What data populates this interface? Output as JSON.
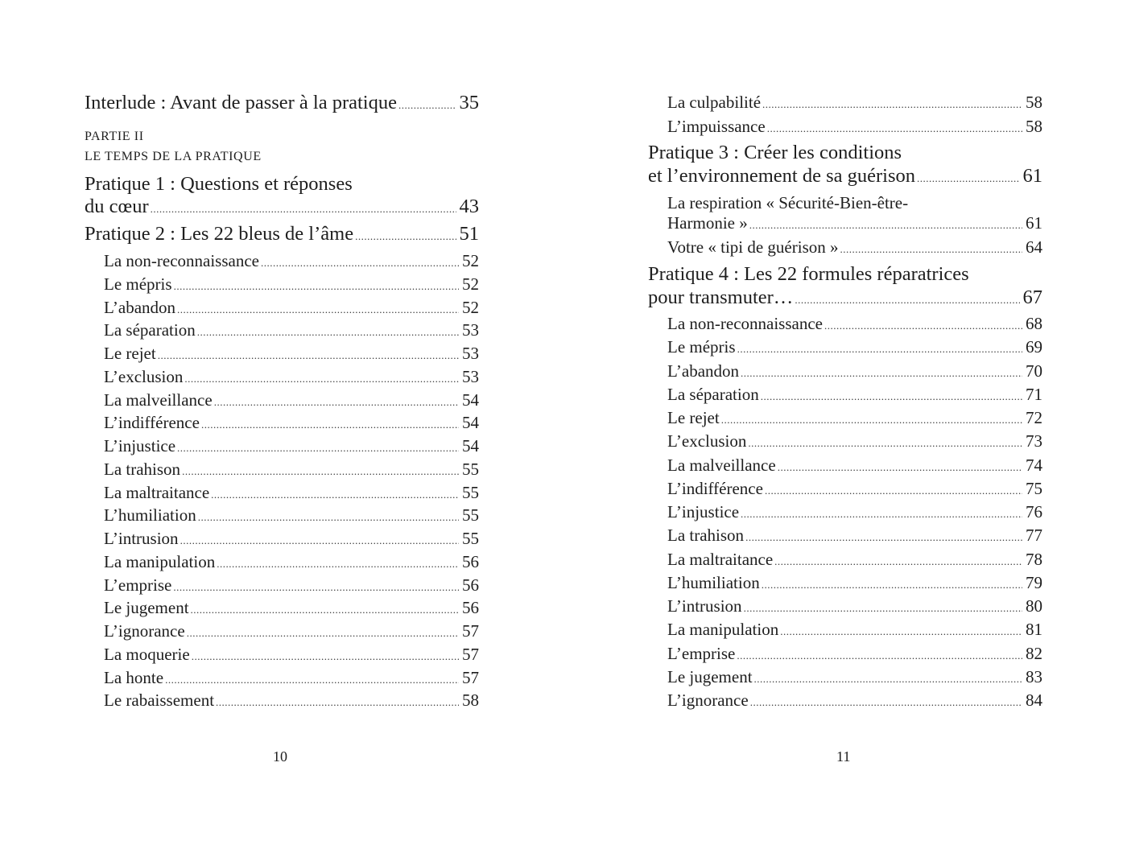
{
  "left_page": {
    "folio": "10",
    "entries": [
      {
        "type": "main",
        "lines": [
          "Interlude : Avant de passer à la pratique"
        ],
        "page": "35"
      },
      {
        "type": "caps",
        "lines": [
          "PARTIE II"
        ]
      },
      {
        "type": "caps",
        "lines": [
          "LE TEMPS DE LA PRATIQUE"
        ]
      },
      {
        "type": "main",
        "lines": [
          "Pratique 1 : Questions et réponses",
          "du cœur"
        ],
        "page": "43"
      },
      {
        "type": "main",
        "lines": [
          "Pratique 2 : Les 22 bleus de l’âme"
        ],
        "page": "51"
      },
      {
        "type": "sub",
        "lines": [
          "La non-reconnaissance"
        ],
        "page": "52"
      },
      {
        "type": "sub",
        "lines": [
          "Le mépris"
        ],
        "page": "52"
      },
      {
        "type": "sub",
        "lines": [
          "L’abandon"
        ],
        "page": "52"
      },
      {
        "type": "sub",
        "lines": [
          "La séparation"
        ],
        "page": "53"
      },
      {
        "type": "sub",
        "lines": [
          "Le rejet"
        ],
        "page": "53"
      },
      {
        "type": "sub",
        "lines": [
          "L’exclusion"
        ],
        "page": "53"
      },
      {
        "type": "sub",
        "lines": [
          "La malveillance"
        ],
        "page": "54"
      },
      {
        "type": "sub",
        "lines": [
          "L’indifférence"
        ],
        "page": "54"
      },
      {
        "type": "sub",
        "lines": [
          "L’injustice"
        ],
        "page": "54"
      },
      {
        "type": "sub",
        "lines": [
          "La trahison"
        ],
        "page": "55"
      },
      {
        "type": "sub",
        "lines": [
          "La maltraitance"
        ],
        "page": "55"
      },
      {
        "type": "sub",
        "lines": [
          "L’humiliation"
        ],
        "page": "55"
      },
      {
        "type": "sub",
        "lines": [
          "L’intrusion"
        ],
        "page": "55"
      },
      {
        "type": "sub",
        "lines": [
          "La manipulation"
        ],
        "page": "56"
      },
      {
        "type": "sub",
        "lines": [
          "L’emprise"
        ],
        "page": "56"
      },
      {
        "type": "sub",
        "lines": [
          "Le jugement"
        ],
        "page": "56"
      },
      {
        "type": "sub",
        "lines": [
          "L’ignorance"
        ],
        "page": "57"
      },
      {
        "type": "sub",
        "lines": [
          "La moquerie"
        ],
        "page": "57"
      },
      {
        "type": "sub",
        "lines": [
          "La honte"
        ],
        "page": "57"
      },
      {
        "type": "sub",
        "lines": [
          "Le rabaissement"
        ],
        "page": "58"
      }
    ]
  },
  "right_page": {
    "folio": "11",
    "entries": [
      {
        "type": "sub",
        "lines": [
          "La culpabilité"
        ],
        "page": "58"
      },
      {
        "type": "sub",
        "lines": [
          "L’impuissance"
        ],
        "page": "58"
      },
      {
        "type": "main",
        "lines": [
          "Pratique 3 : Créer les conditions",
          "et l’environnement de sa guérison"
        ],
        "page": "61"
      },
      {
        "type": "sub",
        "lines": [
          "La respiration « Sécurité-Bien-être-",
          "Harmonie »"
        ],
        "page": "61"
      },
      {
        "type": "sub",
        "lines": [
          "Votre « tipi de guérison »"
        ],
        "page": "64"
      },
      {
        "type": "main",
        "lines": [
          "Pratique 4 : Les 22 formules réparatrices",
          "pour transmuter…"
        ],
        "page": "67"
      },
      {
        "type": "sub",
        "lines": [
          "La non-reconnaissance"
        ],
        "page": "68"
      },
      {
        "type": "sub",
        "lines": [
          "Le mépris"
        ],
        "page": "69"
      },
      {
        "type": "sub",
        "lines": [
          "L’abandon"
        ],
        "page": "70"
      },
      {
        "type": "sub",
        "lines": [
          "La séparation"
        ],
        "page": "71"
      },
      {
        "type": "sub",
        "lines": [
          "Le rejet"
        ],
        "page": "72"
      },
      {
        "type": "sub",
        "lines": [
          "L’exclusion"
        ],
        "page": "73"
      },
      {
        "type": "sub",
        "lines": [
          "La malveillance"
        ],
        "page": "74"
      },
      {
        "type": "sub",
        "lines": [
          "L’indifférence"
        ],
        "page": "75"
      },
      {
        "type": "sub",
        "lines": [
          "L’injustice"
        ],
        "page": "76"
      },
      {
        "type": "sub",
        "lines": [
          "La trahison"
        ],
        "page": "77"
      },
      {
        "type": "sub",
        "lines": [
          "La maltraitance"
        ],
        "page": "78"
      },
      {
        "type": "sub",
        "lines": [
          "L’humiliation"
        ],
        "page": "79"
      },
      {
        "type": "sub",
        "lines": [
          "L’intrusion"
        ],
        "page": "80"
      },
      {
        "type": "sub",
        "lines": [
          "La manipulation"
        ],
        "page": "81"
      },
      {
        "type": "sub",
        "lines": [
          "L’emprise"
        ],
        "page": "82"
      },
      {
        "type": "sub",
        "lines": [
          "Le jugement"
        ],
        "page": "83"
      },
      {
        "type": "sub",
        "lines": [
          "L’ignorance"
        ],
        "page": "84"
      }
    ]
  }
}
